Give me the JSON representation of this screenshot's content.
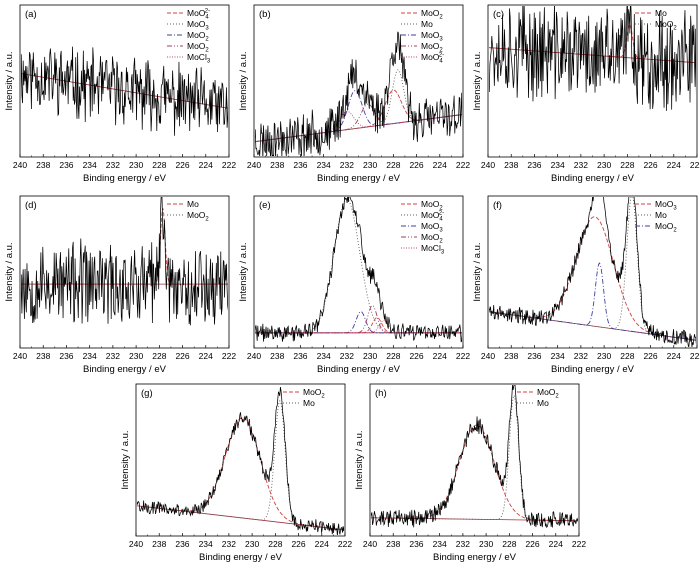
{
  "figure": {
    "panel_count": 8
  },
  "chart_data": [
    {
      "type": "line",
      "panel_label": "(a)",
      "xlabel": "Binding energy / eV",
      "ylabel": "Intensity / a.u.",
      "xlim": [
        240,
        222
      ],
      "ylim": [
        0,
        1
      ],
      "x_ticks": [
        240,
        238,
        236,
        234,
        232,
        230,
        228,
        226,
        224,
        222
      ],
      "legend_position": "top-right",
      "series": [
        {
          "name": "MoO4^2-",
          "name_base": "MoO",
          "name_sub": "4",
          "name_sup": "2-",
          "color": "#d04040",
          "dash": "4,2",
          "peak": 232.0,
          "width": 1.0,
          "height": 0.0
        },
        {
          "name": "MoO3",
          "name_base": "MoO",
          "name_sub": "3",
          "name_sup": "",
          "color": "#606060",
          "dash": "1,2",
          "peak": 232.5,
          "width": 1.0,
          "height": 0.0
        },
        {
          "name": "MoO2",
          "name_base": "MoO",
          "name_sub": "2",
          "name_sup": "",
          "color": "#4040a0",
          "dash": "5,2,1,2",
          "peak": 229.0,
          "width": 1.0,
          "height": 0.0
        },
        {
          "name": "MoO2",
          "name_base": "MoO",
          "name_sub": "2",
          "name_sup": "",
          "color": "#a04060",
          "dash": "5,2,1,2,1,2",
          "peak": 230.5,
          "width": 1.0,
          "height": 0.0
        },
        {
          "name": "MoCl3",
          "name_base": "MoCl",
          "name_sub": "3",
          "name_sup": "",
          "color": "#c04070",
          "dash": "1,1.5",
          "peak": 229.5,
          "width": 1.0,
          "height": 0.0
        }
      ],
      "baseline": {
        "y_start": 0.55,
        "y_end": 0.32
      },
      "noise": 0.2,
      "seed": 11
    },
    {
      "type": "line",
      "panel_label": "(b)",
      "xlabel": "Binding energy / eV",
      "ylabel": "Intensity / a.u.",
      "xlim": [
        240,
        222
      ],
      "ylim": [
        0,
        1
      ],
      "x_ticks": [
        240,
        238,
        236,
        234,
        232,
        230,
        228,
        226,
        224,
        222
      ],
      "legend_position": "top-right",
      "series": [
        {
          "name": "MoO2",
          "name_base": "MoO",
          "name_sub": "2",
          "name_sup": "",
          "color": "#d04040",
          "dash": "4,2",
          "peak": 228.0,
          "width": 0.7,
          "height": 0.22
        },
        {
          "name": "Mo",
          "name_base": "Mo",
          "name_sub": "",
          "name_sup": "",
          "color": "#606060",
          "dash": "1,2",
          "peak": 227.6,
          "width": 0.5,
          "height": 0.35
        },
        {
          "name": "MoO3",
          "name_base": "MoO",
          "name_sub": "3",
          "name_sup": "",
          "color": "#4040a0",
          "dash": "5,2,1,2",
          "peak": 231.3,
          "width": 0.6,
          "height": 0.25
        },
        {
          "name": "MoO2",
          "name_base": "MoO",
          "name_sub": "2",
          "name_sup": "",
          "color": "#a04060",
          "dash": "5,2,1,2,1,2",
          "peak": 230.2,
          "width": 0.6,
          "height": 0.15
        },
        {
          "name": "MoO4^2-",
          "name_base": "MoO",
          "name_sub": "4",
          "name_sup": "2-",
          "color": "#c04070",
          "dash": "1,1.5",
          "peak": 232.0,
          "width": 0.6,
          "height": 0.12
        }
      ],
      "baseline": {
        "y_start": 0.1,
        "y_end": 0.28
      },
      "noise": 0.13,
      "seed": 23
    },
    {
      "type": "line",
      "panel_label": "(c)",
      "xlabel": "Binding energy / eV",
      "ylabel": "Intensity / a.u.",
      "xlim": [
        240,
        222
      ],
      "ylim": [
        0,
        1
      ],
      "x_ticks": [
        240,
        238,
        236,
        234,
        232,
        230,
        228,
        226,
        224,
        222
      ],
      "legend_position": "top-right",
      "series": [
        {
          "name": "Mo",
          "name_base": "Mo",
          "name_sub": "",
          "name_sup": "",
          "color": "#d04040",
          "dash": "4,2",
          "peak": 227.8,
          "width": 0.25,
          "height": 0.22
        },
        {
          "name": "MoO2",
          "name_base": "MoO",
          "name_sub": "2",
          "name_sup": "",
          "color": "#606060",
          "dash": "1,2",
          "peak": 228.0,
          "width": 0.5,
          "height": 0.0
        }
      ],
      "baseline": {
        "y_start": 0.72,
        "y_end": 0.62
      },
      "noise": 0.28,
      "seed": 37
    },
    {
      "type": "line",
      "panel_label": "(d)",
      "xlabel": "Binding energy / eV",
      "ylabel": "Intensity / a.u.",
      "xlim": [
        240,
        222
      ],
      "ylim": [
        0,
        1
      ],
      "x_ticks": [
        240,
        238,
        236,
        234,
        232,
        230,
        228,
        226,
        224,
        222
      ],
      "legend_position": "top-right",
      "series": [
        {
          "name": "Mo",
          "name_base": "Mo",
          "name_sub": "",
          "name_sup": "",
          "color": "#d04040",
          "dash": "4,2",
          "peak": 227.7,
          "width": 0.2,
          "height": 0.5
        },
        {
          "name": "MoO2",
          "name_base": "MoO",
          "name_sub": "2",
          "name_sup": "",
          "color": "#606060",
          "dash": "1,2",
          "peak": 228.0,
          "width": 0.4,
          "height": 0.0
        }
      ],
      "baseline": {
        "y_start": 0.42,
        "y_end": 0.42
      },
      "noise": 0.24,
      "seed": 53
    },
    {
      "type": "line",
      "panel_label": "(e)",
      "xlabel": "Binding energy / eV",
      "ylabel": "Intensity / a.u.",
      "xlim": [
        240,
        222
      ],
      "ylim": [
        0,
        1
      ],
      "x_ticks": [
        240,
        238,
        236,
        234,
        232,
        230,
        228,
        226,
        224,
        222
      ],
      "legend_position": "top-right",
      "series": [
        {
          "name": "MoO2",
          "name_base": "MoO",
          "name_sub": "2",
          "name_sup": "",
          "color": "#d04040",
          "dash": "4,2",
          "peak": 229.4,
          "width": 0.4,
          "height": 0.1
        },
        {
          "name": "MoO4^2-",
          "name_base": "MoO",
          "name_sub": "4",
          "name_sup": "2-",
          "color": "#606060",
          "dash": "1,2",
          "peak": 232.0,
          "width": 1.1,
          "height": 0.88
        },
        {
          "name": "MoO3",
          "name_base": "MoO",
          "name_sub": "3",
          "name_sup": "",
          "color": "#4040a0",
          "dash": "5,2,1,2",
          "peak": 230.8,
          "width": 0.4,
          "height": 0.14
        },
        {
          "name": "MoO2",
          "name_base": "MoO",
          "name_sub": "2",
          "name_sup": "",
          "color": "#a04060",
          "dash": "5,2,1,2,1,2",
          "peak": 229.8,
          "width": 0.4,
          "height": 0.18
        },
        {
          "name": "MoCl3",
          "name_base": "MoCl",
          "name_sub": "3",
          "name_sup": "",
          "color": "#c04070",
          "dash": "1,1.5",
          "peak": 228.8,
          "width": 0.4,
          "height": 0.08
        }
      ],
      "baseline": {
        "y_start": 0.1,
        "y_end": 0.1
      },
      "noise": 0.05,
      "seed": 71
    },
    {
      "type": "line",
      "panel_label": "(f)",
      "xlabel": "Binding energy / eV",
      "ylabel": "Intensity / a.u.",
      "xlim": [
        240,
        222
      ],
      "ylim": [
        0,
        1
      ],
      "x_ticks": [
        240,
        238,
        236,
        234,
        232,
        230,
        228,
        226,
        224,
        222
      ],
      "legend_position": "top-right",
      "series": [
        {
          "name": "MoO3",
          "name_base": "MoO",
          "name_sub": "3",
          "name_sup": "",
          "color": "#d04040",
          "dash": "4,2",
          "peak": 230.8,
          "width": 1.6,
          "height": 0.72
        },
        {
          "name": "Mo",
          "name_base": "Mo",
          "name_sub": "",
          "name_sup": "",
          "color": "#606060",
          "dash": "1,2",
          "peak": 227.6,
          "width": 0.45,
          "height": 0.9
        },
        {
          "name": "MoO2",
          "name_base": "MoO",
          "name_sub": "2",
          "name_sup": "",
          "color": "#4040a0",
          "dash": "5,2,1,2",
          "peak": 230.4,
          "width": 0.35,
          "height": 0.42
        }
      ],
      "baseline": {
        "y_start": 0.24,
        "y_end": 0.05
      },
      "noise": 0.05,
      "seed": 89
    },
    {
      "type": "line",
      "panel_label": "(g)",
      "xlabel": "Binding energy / eV",
      "ylabel": "Intensity / a.u.",
      "xlim": [
        240,
        222
      ],
      "ylim": [
        0,
        1
      ],
      "x_ticks": [
        240,
        238,
        236,
        234,
        232,
        230,
        228,
        226,
        224,
        222
      ],
      "legend_position": "top-right",
      "series": [
        {
          "name": "MoO2",
          "name_base": "MoO",
          "name_sub": "2",
          "name_sup": "",
          "color": "#d04040",
          "dash": "4,2",
          "peak": 230.8,
          "width": 1.5,
          "height": 0.66
        },
        {
          "name": "Mo",
          "name_base": "Mo",
          "name_sub": "",
          "name_sup": "",
          "color": "#606060",
          "dash": "1,2",
          "peak": 227.6,
          "width": 0.45,
          "height": 0.8
        }
      ],
      "baseline": {
        "y_start": 0.2,
        "y_end": 0.04
      },
      "noise": 0.04,
      "seed": 101
    },
    {
      "type": "line",
      "panel_label": "(h)",
      "xlabel": "Binding energy / eV",
      "ylabel": "Intensity / a.u.",
      "xlim": [
        240,
        222
      ],
      "ylim": [
        0,
        1
      ],
      "x_ticks": [
        240,
        238,
        236,
        234,
        232,
        230,
        228,
        226,
        224,
        222
      ],
      "legend_position": "top-right",
      "series": [
        {
          "name": "MoO2",
          "name_base": "MoO",
          "name_sub": "2",
          "name_sup": "",
          "color": "#d04040",
          "dash": "4,2",
          "peak": 230.8,
          "width": 1.5,
          "height": 0.62
        },
        {
          "name": "Mo",
          "name_base": "Mo",
          "name_sub": "",
          "name_sup": "",
          "color": "#606060",
          "dash": "1,2",
          "peak": 227.6,
          "width": 0.4,
          "height": 0.82
        }
      ],
      "baseline": {
        "y_start": 0.12,
        "y_end": 0.1
      },
      "noise": 0.05,
      "seed": 131
    }
  ]
}
